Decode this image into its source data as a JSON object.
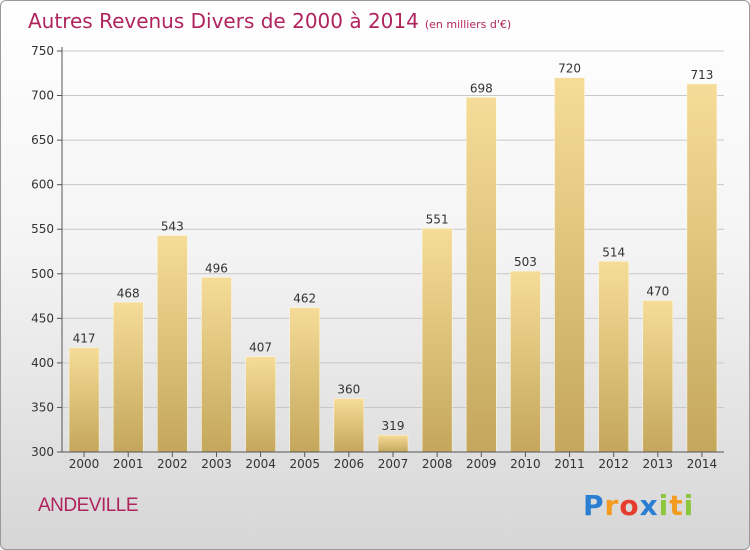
{
  "title": "Autres Revenus Divers de 2000 à 2014",
  "subtitle": "(en milliers d'€)",
  "location": "ANDEVILLE",
  "logo": {
    "letters": [
      "P",
      "r",
      "o",
      "x",
      "i",
      "t",
      "i"
    ],
    "colors": [
      "#2a7fd2",
      "#f39b1e",
      "#e63c2e",
      "#2a7fd2",
      "#8cc63f",
      "#f39b1e",
      "#8cc63f"
    ]
  },
  "colors": {
    "title": "#b0245e",
    "bar_top": "#f5dc98",
    "bar_bottom": "#c4a75c",
    "grid": "#c8c8c8"
  },
  "chart_data": {
    "type": "bar",
    "categories": [
      "2000",
      "2001",
      "2002",
      "2003",
      "2004",
      "2005",
      "2006",
      "2007",
      "2008",
      "2009",
      "2010",
      "2011",
      "2012",
      "2013",
      "2014"
    ],
    "values": [
      417,
      468,
      543,
      496,
      407,
      462,
      360,
      319,
      551,
      698,
      503,
      720,
      514,
      470,
      713
    ],
    "ylim": [
      300,
      750
    ],
    "yticks": [
      300,
      350,
      400,
      450,
      500,
      550,
      600,
      650,
      700,
      750
    ],
    "grid": true,
    "data_labels": true
  }
}
